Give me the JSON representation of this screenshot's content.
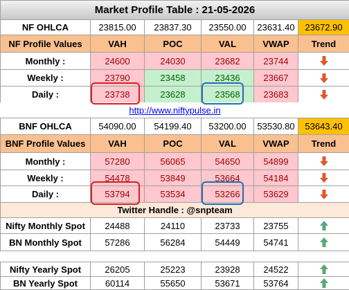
{
  "title": "Market Profile Table : 21-05-2026",
  "nf_ohlca": {
    "label": "NF OHLCA",
    "values": [
      "23815.00",
      "23837.30",
      "23550.00",
      "23631.40",
      "23672.90"
    ]
  },
  "nf_header": [
    "NF Profile Values",
    "VAH",
    "POC",
    "VAL",
    "VWAP",
    "Trend"
  ],
  "nf_rows": [
    {
      "label": "Monthly :",
      "values": [
        24600,
        24030,
        23682,
        23744
      ],
      "trend": "down"
    },
    {
      "label": "Weekly :",
      "values": [
        23790,
        23458,
        23436,
        23667
      ],
      "trend": "down"
    },
    {
      "label": "Daily :",
      "values": [
        23738,
        23628,
        23568,
        23683
      ],
      "trend": "down"
    }
  ],
  "link": "http://www.niftypulse.in",
  "bnf_ohlca": {
    "label": "BNF OHLCA",
    "values": [
      "54090.00",
      "54199.40",
      "53200.00",
      "53530.80",
      "53643.40"
    ]
  },
  "bnf_header": [
    "BNF Profile Values",
    "VAH",
    "POC",
    "VAL",
    "VWAP",
    "Trend"
  ],
  "bnf_rows": [
    {
      "label": "Monthly :",
      "values": [
        57280,
        56065,
        54650,
        54899
      ],
      "trend": "down"
    },
    {
      "label": "Weekly :",
      "values": [
        54478,
        53849,
        53664,
        54184
      ],
      "trend": "down"
    },
    {
      "label": "Daily :",
      "values": [
        53794,
        53534,
        53266,
        53629
      ],
      "trend": "down"
    }
  ],
  "twitter": "Twitter Handle : @snpteam",
  "spot_rows": [
    {
      "label": "Nifty Monthly Spot",
      "values": [
        24488,
        24110,
        23733,
        23755
      ],
      "trend": "up"
    },
    {
      "label": "BN Monthly Spot",
      "values": [
        57286,
        56284,
        54449,
        54741
      ],
      "trend": "up"
    }
  ],
  "yearly_rows": [
    {
      "label": "Nifty Yearly Spot",
      "values": [
        26205,
        25223,
        23928,
        24522
      ],
      "trend": "up"
    },
    {
      "label": "BN Yearly Spot",
      "values": [
        60114,
        55650,
        53671,
        53764
      ],
      "trend": "up"
    }
  ]
}
